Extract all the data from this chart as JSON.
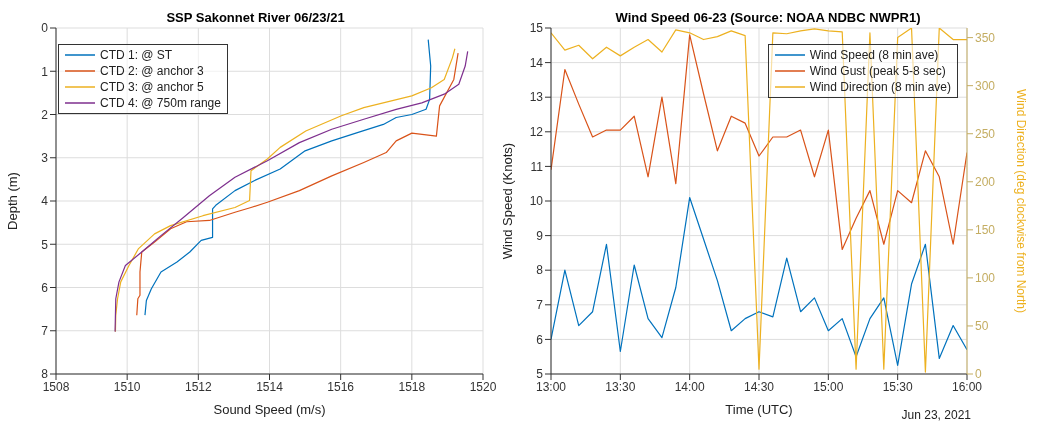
{
  "chart_data": [
    {
      "type": "line",
      "title": "SSP Sakonnet River 06/23/21",
      "xlabel": "Sound Speed (m/s)",
      "ylabel": "Depth (m)",
      "xlim": [
        1508,
        1520
      ],
      "xticks": [
        1508,
        1510,
        1512,
        1514,
        1516,
        1518,
        1520
      ],
      "ylim": [
        8,
        0
      ],
      "yticks": [
        0,
        1,
        2,
        3,
        4,
        5,
        6,
        7,
        8
      ],
      "grid": true,
      "legend": "top left",
      "marker": "none",
      "line_style": "solid",
      "series": [
        {
          "name": "CTD 1: @ ST",
          "color": "#0072bd",
          "x": [
            1518.46,
            1518.53,
            1518.5,
            1518.4,
            1518.0,
            1517.56,
            1517.2,
            1516.47,
            1515.75,
            1515.0,
            1514.3,
            1513.57,
            1513.03,
            1512.49,
            1512.4,
            1512.4,
            1512.08,
            1511.76,
            1511.4,
            1510.95,
            1510.68,
            1510.54,
            1510.5
          ],
          "values": [
            0.27,
            0.88,
            1.65,
            1.88,
            2.0,
            2.07,
            2.23,
            2.42,
            2.61,
            2.84,
            3.26,
            3.53,
            3.76,
            4.1,
            4.18,
            4.84,
            4.91,
            5.18,
            5.41,
            5.64,
            6.03,
            6.3,
            6.64
          ]
        },
        {
          "name": "CTD 2: @ anchor 3",
          "color": "#d95319",
          "x": [
            1519.3,
            1519.18,
            1518.78,
            1518.69,
            1518.0,
            1517.56,
            1517.28,
            1516.65,
            1515.75,
            1514.84,
            1513.94,
            1513.48,
            1513.03,
            1512.31,
            1511.67,
            1511.22,
            1510.77,
            1510.41,
            1510.36,
            1510.36,
            1510.3,
            1510.27
          ],
          "values": [
            0.58,
            1.19,
            1.8,
            2.5,
            2.43,
            2.61,
            2.88,
            3.11,
            3.42,
            3.76,
            4.03,
            4.15,
            4.26,
            4.45,
            4.48,
            4.64,
            4.95,
            5.18,
            5.64,
            6.18,
            6.26,
            6.64
          ]
        },
        {
          "name": "CTD 3: @ anchor 5",
          "color": "#edb120",
          "x": [
            1519.21,
            1519.14,
            1518.91,
            1518.55,
            1518.0,
            1516.65,
            1516.02,
            1515.02,
            1514.3,
            1513.94,
            1513.48,
            1513.44,
            1513.03,
            1512.13,
            1511.22,
            1510.77,
            1510.32,
            1510.05,
            1509.82,
            1509.73,
            1509.68,
            1509.67
          ],
          "values": [
            0.48,
            0.69,
            1.19,
            1.38,
            1.57,
            1.84,
            2.03,
            2.38,
            2.76,
            3.03,
            3.3,
            3.99,
            4.15,
            4.34,
            4.57,
            4.76,
            5.1,
            5.49,
            5.87,
            6.26,
            6.64,
            7.02
          ]
        },
        {
          "name": "CTD 4: @ 750m range",
          "color": "#7e2f8e",
          "x": [
            1519.57,
            1519.5,
            1519.32,
            1518.91,
            1518.28,
            1517.56,
            1516.65,
            1515.75,
            1514.84,
            1513.94,
            1513.03,
            1512.31,
            1511.58,
            1510.95,
            1510.41,
            1509.95,
            1509.77,
            1509.68,
            1509.66
          ],
          "values": [
            0.54,
            0.88,
            1.3,
            1.53,
            1.73,
            1.88,
            2.11,
            2.34,
            2.65,
            3.07,
            3.45,
            3.88,
            4.38,
            4.8,
            5.18,
            5.49,
            5.87,
            6.26,
            7.02
          ]
        }
      ]
    },
    {
      "type": "line",
      "title": "Wind Speed 06-23 (Source: NOAA NDBC NWPR1)",
      "xlabel": "Time (UTC)",
      "ylabel": "Wind Speed (Knots)",
      "y2label": "Wind Direction (deg clockwise from North)",
      "annotations": [
        "Jun 23, 2021"
      ],
      "xlim": [
        13,
        16
      ],
      "xticks": [
        {
          "value": 13,
          "label": "13:00"
        },
        {
          "value": 13.5,
          "label": "13:30"
        },
        {
          "value": 14,
          "label": "14:00"
        },
        {
          "value": 14.5,
          "label": "14:30"
        },
        {
          "value": 15,
          "label": "15:00"
        },
        {
          "value": 15.5,
          "label": "15:30"
        },
        {
          "value": 16,
          "label": "16:00"
        }
      ],
      "ylim": [
        5,
        15
      ],
      "yticks": [
        5,
        6,
        7,
        8,
        9,
        10,
        11,
        12,
        13,
        14,
        15
      ],
      "y2lim": [
        0,
        360
      ],
      "y2ticks": [
        0,
        50,
        100,
        150,
        200,
        250,
        300,
        350
      ],
      "grid": true,
      "legend": "top right",
      "marker": "none",
      "line_style": "solid",
      "x": [
        13.0,
        13.1,
        13.2,
        13.3,
        13.4,
        13.5,
        13.6,
        13.7,
        13.8,
        13.9,
        14.0,
        14.1,
        14.2,
        14.3,
        14.4,
        14.5,
        14.6,
        14.7,
        14.8,
        14.9,
        15.0,
        15.1,
        15.2,
        15.3,
        15.4,
        15.5,
        15.6,
        15.7,
        15.8,
        15.9,
        16.0
      ],
      "series": [
        {
          "name": "Wind Speed (8 min ave)",
          "color": "#0072bd",
          "values": [
            6.0,
            8.0,
            6.4,
            6.8,
            8.75,
            5.65,
            8.15,
            6.6,
            6.05,
            7.5,
            10.1,
            8.9,
            7.7,
            6.25,
            6.6,
            6.8,
            6.65,
            8.35,
            6.8,
            7.2,
            6.25,
            6.6,
            5.5,
            6.6,
            7.2,
            5.25,
            7.6,
            8.75,
            5.45,
            6.4,
            5.7
          ]
        },
        {
          "name": "Wind Gust (peak 5-8 sec)",
          "color": "#d95319",
          "values": [
            10.9,
            13.8,
            12.8,
            11.85,
            12.05,
            12.05,
            12.45,
            10.7,
            13.0,
            10.5,
            14.8,
            13.1,
            11.45,
            12.45,
            12.25,
            11.3,
            11.85,
            11.85,
            12.05,
            10.7,
            12.05,
            8.6,
            9.5,
            10.3,
            8.75,
            10.3,
            9.95,
            11.45,
            10.7,
            8.75,
            11.4
          ]
        },
        {
          "name": "Wind Direction (8 min ave)",
          "color": "#edb120",
          "axis": "y2",
          "values": [
            355,
            337,
            342,
            328,
            340,
            331,
            340,
            348,
            335,
            358,
            355,
            348,
            351,
            357,
            352,
            5,
            355,
            354,
            357,
            359,
            357,
            356,
            5,
            355,
            5,
            350,
            360,
            2,
            360,
            348,
            348
          ]
        }
      ]
    }
  ]
}
